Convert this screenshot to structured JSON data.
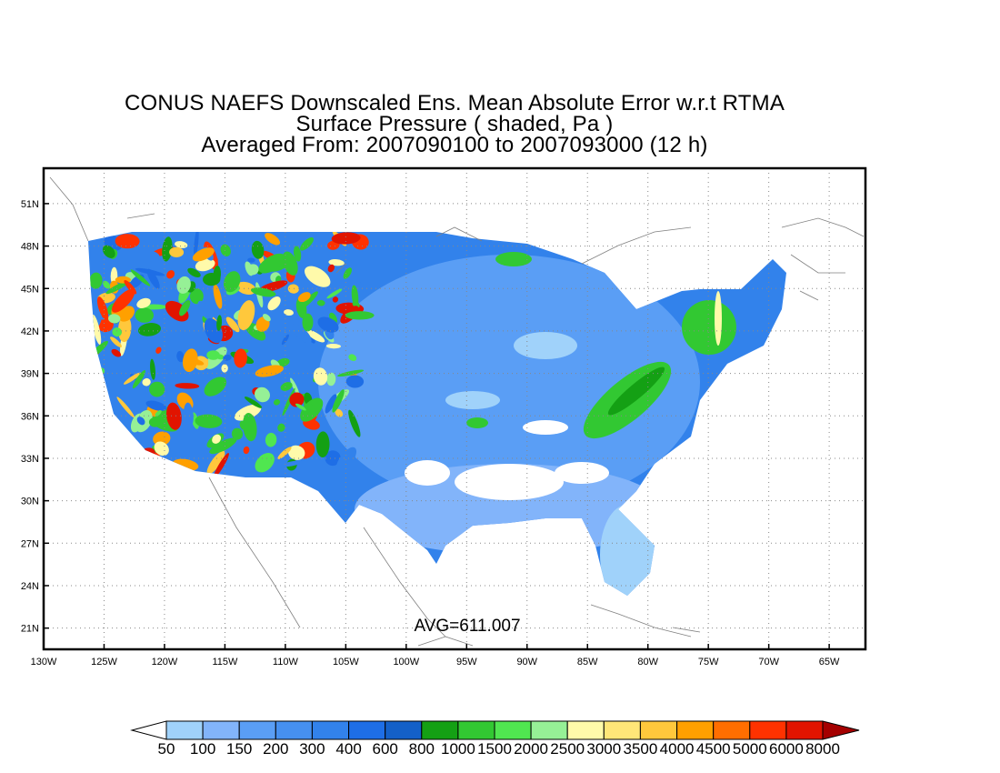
{
  "title": {
    "line1": "CONUS NAEFS Downscaled Ens. Mean Absolute Error w.r.t RTMA",
    "line2": "Surface Pressure ( shaded, Pa )",
    "line3": "Averaged From: 2007090100 to 2007093000 (12 h)"
  },
  "annotation": {
    "avg": "AVG=611.007"
  },
  "map_data": {
    "type": "shaded_map",
    "region": "CONUS",
    "lon_range": [
      -130,
      -62
    ],
    "lat_range": [
      19.5,
      53.5
    ],
    "grid": true,
    "lat_ticks": [
      {
        "value": 51,
        "label": "51N"
      },
      {
        "value": 48,
        "label": "48N"
      },
      {
        "value": 45,
        "label": "45N"
      },
      {
        "value": 42,
        "label": "42N"
      },
      {
        "value": 39,
        "label": "39N"
      },
      {
        "value": 36,
        "label": "36N"
      },
      {
        "value": 33,
        "label": "33N"
      },
      {
        "value": 30,
        "label": "30N"
      },
      {
        "value": 27,
        "label": "27N"
      },
      {
        "value": 24,
        "label": "24N"
      },
      {
        "value": 21,
        "label": "21N"
      }
    ],
    "lon_ticks": [
      {
        "value": -130,
        "label": "130W"
      },
      {
        "value": -125,
        "label": "125W"
      },
      {
        "value": -120,
        "label": "120W"
      },
      {
        "value": -115,
        "label": "115W"
      },
      {
        "value": -110,
        "label": "110W"
      },
      {
        "value": -105,
        "label": "105W"
      },
      {
        "value": -100,
        "label": "100W"
      },
      {
        "value": -95,
        "label": "95W"
      },
      {
        "value": -90,
        "label": "90W"
      },
      {
        "value": -85,
        "label": "85W"
      },
      {
        "value": -80,
        "label": "80W"
      },
      {
        "value": -75,
        "label": "75W"
      },
      {
        "value": -70,
        "label": "70W"
      },
      {
        "value": -65,
        "label": "65W"
      }
    ]
  },
  "colorbar": {
    "levels": [
      "50",
      "100",
      "150",
      "200",
      "300",
      "400",
      "600",
      "800",
      "1000",
      "1500",
      "2000",
      "2500",
      "3000",
      "3500",
      "4000",
      "4500",
      "5000",
      "6000",
      "8000"
    ],
    "colors": [
      "#ffffff",
      "#a0d2fa",
      "#82b4fa",
      "#5a9ef5",
      "#4690f0",
      "#3282eb",
      "#1e6ee6",
      "#1460c8",
      "#14a014",
      "#32c832",
      "#50e650",
      "#96f096",
      "#fffaaa",
      "#ffe678",
      "#ffc83c",
      "#ffa000",
      "#ff6e00",
      "#ff3200",
      "#e11400",
      "#a50000"
    ]
  }
}
